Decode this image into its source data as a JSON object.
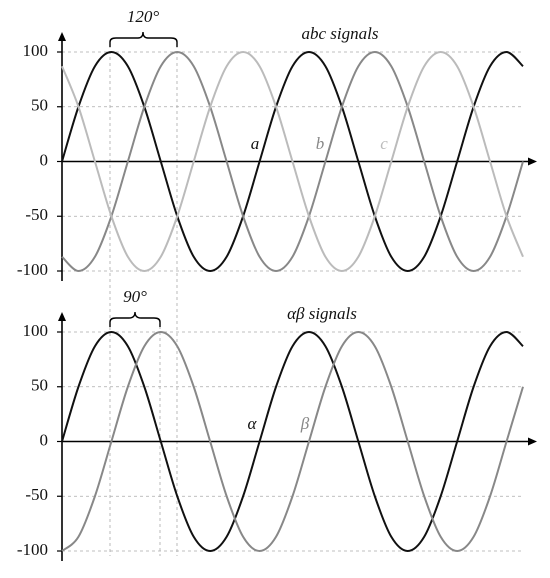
{
  "chart_data": [
    {
      "type": "line",
      "title": "abc signals",
      "annotation": "120°",
      "x": [
        0,
        30,
        60,
        90,
        120,
        150,
        180,
        210,
        240,
        270,
        300,
        330,
        360,
        390,
        420,
        450,
        480,
        510,
        540,
        570,
        600,
        630,
        660,
        690,
        720,
        750,
        780,
        810,
        840
      ],
      "xlim": [
        0,
        840
      ],
      "ylim": [
        -100,
        100
      ],
      "yticks": [
        -100,
        -50,
        0,
        50,
        100
      ],
      "grid": true,
      "series": [
        {
          "name": "a",
          "color": "#111111",
          "values": [
            0,
            50,
            87,
            100,
            87,
            50,
            0,
            -50,
            -87,
            -100,
            -87,
            -50,
            0,
            50,
            87,
            100,
            87,
            50,
            0,
            -50,
            -87,
            -100,
            -87,
            -50,
            0,
            50,
            87,
            100,
            87
          ]
        },
        {
          "name": "b",
          "color": "#888888",
          "values": [
            -87,
            -100,
            -87,
            -50,
            0,
            50,
            87,
            100,
            87,
            50,
            0,
            -50,
            -87,
            -100,
            -87,
            -50,
            0,
            50,
            87,
            100,
            87,
            50,
            0,
            -50,
            -87,
            -100,
            -87,
            -50,
            0
          ]
        },
        {
          "name": "c",
          "color": "#bbbbbb",
          "values": [
            87,
            50,
            0,
            -50,
            -87,
            -100,
            -87,
            -50,
            0,
            50,
            87,
            100,
            87,
            50,
            0,
            -50,
            -87,
            -100,
            -87,
            -50,
            0,
            50,
            87,
            100,
            87,
            50,
            0,
            -50,
            -87
          ]
        }
      ]
    },
    {
      "type": "line",
      "title": "αβ signals",
      "annotation": "90°",
      "x": [
        0,
        30,
        60,
        90,
        120,
        150,
        180,
        210,
        240,
        270,
        300,
        330,
        360,
        390,
        420,
        450,
        480,
        510,
        540,
        570,
        600,
        630,
        660,
        690,
        720,
        750,
        780,
        810,
        840
      ],
      "xlim": [
        0,
        840
      ],
      "ylim": [
        -100,
        100
      ],
      "yticks": [
        -100,
        -50,
        0,
        50,
        100
      ],
      "grid": true,
      "series": [
        {
          "name": "α",
          "color": "#111111",
          "values": [
            0,
            50,
            87,
            100,
            87,
            50,
            0,
            -50,
            -87,
            -100,
            -87,
            -50,
            0,
            50,
            87,
            100,
            87,
            50,
            0,
            -50,
            -87,
            -100,
            -87,
            -50,
            0,
            50,
            87,
            100,
            87
          ]
        },
        {
          "name": "β",
          "color": "#888888",
          "values": [
            -100,
            -87,
            -50,
            0,
            50,
            87,
            100,
            87,
            50,
            0,
            -50,
            -87,
            -100,
            -87,
            -50,
            0,
            50,
            87,
            100,
            87,
            50,
            0,
            -50,
            -87,
            -100,
            -87,
            -50,
            0,
            50
          ]
        }
      ]
    }
  ]
}
